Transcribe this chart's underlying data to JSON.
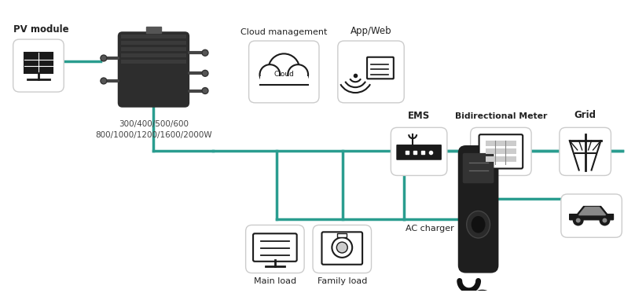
{
  "bg_color": "#ffffff",
  "line_color": "#2a9d8f",
  "box_edge_color": "#cccccc",
  "text_color": "#222222",
  "icon_color": "#1a1a1a",
  "figsize": [
    8.08,
    3.73
  ],
  "dpi": 100,
  "labels": {
    "pv_module": "PV module",
    "inverter_watts": "300/400/500/600\n800/1000/1200/1600/2000W",
    "cloud_mgmt": "Cloud management",
    "app_web": "App/Web",
    "ems": "EMS",
    "bidi_meter": "Bidirectional Meter",
    "grid": "Grid",
    "main_load": "Main load",
    "family_load": "Family load",
    "ac_charger": "AC charger"
  }
}
